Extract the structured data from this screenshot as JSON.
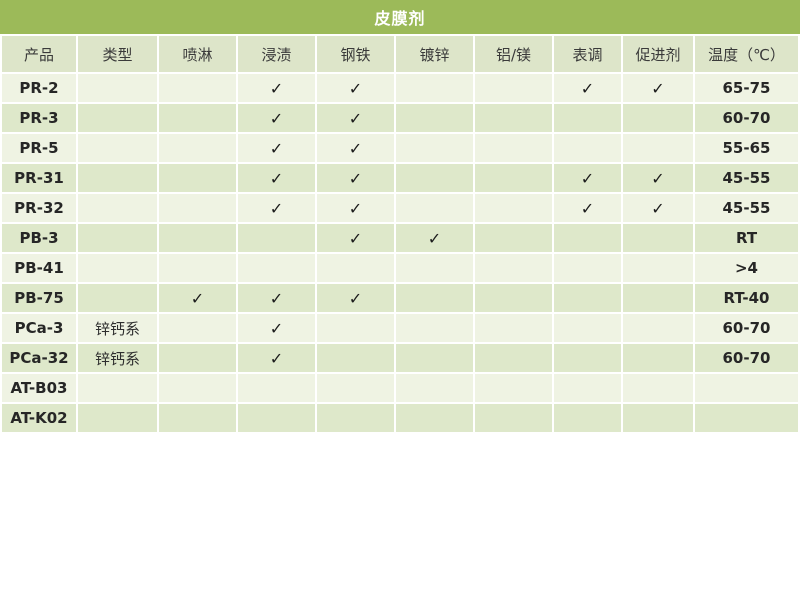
{
  "title": "皮膜剂",
  "colors": {
    "title_bar_green": "#9CBA59",
    "header_row": "#DDE5C9",
    "band_light": "#EFF3E3",
    "band_dark": "#DEE8CA",
    "title_text": "#FFFFFF",
    "body_text": "#2E2E2E"
  },
  "table": {
    "check_glyph": "✓",
    "columns": [
      "产品",
      "类型",
      "喷淋",
      "浸渍",
      "钢铁",
      "镀锌",
      "铝/镁",
      "表调",
      "促进剂",
      "温度（℃）"
    ],
    "rows": [
      {
        "product": "PR-2",
        "type": "",
        "checks": [
          false,
          true,
          true,
          false,
          false,
          true,
          true
        ],
        "temp": "65-75"
      },
      {
        "product": "PR-3",
        "type": "",
        "checks": [
          false,
          true,
          true,
          false,
          false,
          false,
          false
        ],
        "temp": "60-70"
      },
      {
        "product": "PR-5",
        "type": "",
        "checks": [
          false,
          true,
          true,
          false,
          false,
          false,
          false
        ],
        "temp": "55-65"
      },
      {
        "product": "PR-31",
        "type": "",
        "checks": [
          false,
          true,
          true,
          false,
          false,
          true,
          true
        ],
        "temp": "45-55"
      },
      {
        "product": "PR-32",
        "type": "",
        "checks": [
          false,
          true,
          true,
          false,
          false,
          true,
          true
        ],
        "temp": "45-55"
      },
      {
        "product": "PB-3",
        "type": "",
        "checks": [
          false,
          false,
          true,
          true,
          false,
          false,
          false
        ],
        "temp": "RT"
      },
      {
        "product": "PB-41",
        "type": "",
        "checks": [
          false,
          false,
          false,
          false,
          false,
          false,
          false
        ],
        "temp": ">4"
      },
      {
        "product": "PB-75",
        "type": "",
        "checks": [
          true,
          true,
          true,
          false,
          false,
          false,
          false
        ],
        "temp": "RT-40"
      },
      {
        "product": "PCa-3",
        "type": "锌钙系",
        "checks": [
          false,
          true,
          false,
          false,
          false,
          false,
          false
        ],
        "temp": "60-70"
      },
      {
        "product": "PCa-32",
        "type": "锌钙系",
        "checks": [
          false,
          true,
          false,
          false,
          false,
          false,
          false
        ],
        "temp": "60-70"
      },
      {
        "product": "AT-B03",
        "type": "",
        "checks": [
          false,
          false,
          false,
          false,
          false,
          false,
          false
        ],
        "temp": ""
      },
      {
        "product": "AT-K02",
        "type": "",
        "checks": [
          false,
          false,
          false,
          false,
          false,
          false,
          false
        ],
        "temp": ""
      }
    ]
  },
  "chart_data": {
    "type": "table",
    "title": "皮膜剂",
    "columns": [
      "产品",
      "类型",
      "喷淋",
      "浸渍",
      "钢铁",
      "镀锌",
      "铝/镁",
      "表调",
      "促进剂",
      "温度（℃）"
    ],
    "rows": [
      [
        "PR-2",
        "",
        "",
        "✓",
        "✓",
        "",
        "",
        "✓",
        "✓",
        "65-75"
      ],
      [
        "PR-3",
        "",
        "",
        "✓",
        "✓",
        "",
        "",
        "",
        "",
        "60-70"
      ],
      [
        "PR-5",
        "",
        "",
        "✓",
        "✓",
        "",
        "",
        "",
        "",
        "55-65"
      ],
      [
        "PR-31",
        "",
        "",
        "✓",
        "✓",
        "",
        "",
        "✓",
        "✓",
        "45-55"
      ],
      [
        "PR-32",
        "",
        "",
        "✓",
        "✓",
        "",
        "",
        "✓",
        "✓",
        "45-55"
      ],
      [
        "PB-3",
        "",
        "",
        "",
        "✓",
        "✓",
        "",
        "",
        "",
        "RT"
      ],
      [
        "PB-41",
        "",
        "",
        "",
        "",
        "",
        "",
        "",
        "",
        ">4"
      ],
      [
        "PB-75",
        "",
        "✓",
        "✓",
        "✓",
        "",
        "",
        "",
        "",
        "RT-40"
      ],
      [
        "PCa-3",
        "锌钙系",
        "",
        "✓",
        "",
        "",
        "",
        "",
        "",
        "60-70"
      ],
      [
        "PCa-32",
        "锌钙系",
        "",
        "✓",
        "",
        "",
        "",
        "",
        "",
        "60-70"
      ],
      [
        "AT-B03",
        "",
        "",
        "",
        "",
        "",
        "",
        "",
        "",
        ""
      ],
      [
        "AT-K02",
        "",
        "",
        "",
        "",
        "",
        "",
        "",
        "",
        ""
      ]
    ]
  }
}
